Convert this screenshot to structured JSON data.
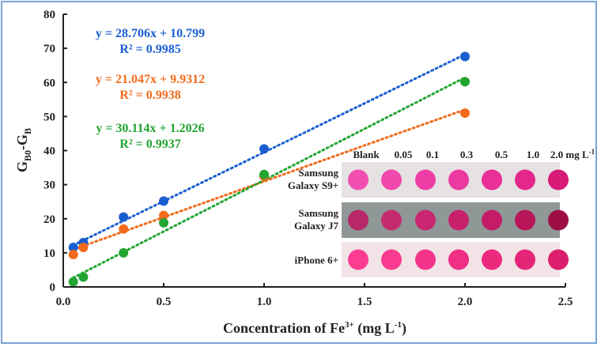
{
  "chart_data": {
    "type": "scatter",
    "title": "",
    "xlabel": "Concentration of Fe3+ (mg L-1)",
    "xlabel_parts": {
      "base": "Concentration of Fe",
      "sup": "3+",
      "mid": " (mg L",
      "sup2": "-1",
      "end": ")"
    },
    "ylabel_parts": {
      "g1": "G",
      "sub1": "B0",
      "mid": "-G",
      "sub2": "B"
    },
    "xlim": [
      0,
      2.5
    ],
    "ylim": [
      0,
      80
    ],
    "xticks": [
      "0.0",
      "0.5",
      "1.0",
      "1.5",
      "2.0",
      "2.5"
    ],
    "xtick_values": [
      0,
      0.5,
      1.0,
      1.5,
      2.0,
      2.5
    ],
    "yticks": [
      "0",
      "10",
      "20",
      "30",
      "40",
      "50",
      "60",
      "70",
      "80"
    ],
    "ytick_values": [
      0,
      10,
      20,
      30,
      40,
      50,
      60,
      70,
      80
    ],
    "grid": false,
    "series": [
      {
        "name": "Samsung Galaxy S9+",
        "color": "#1a5fd0",
        "x": [
          0.05,
          0.1,
          0.3,
          0.5,
          1.0,
          2.0
        ],
        "y": [
          11.6,
          13.0,
          20.5,
          25.2,
          40.5,
          67.6
        ],
        "trendline": {
          "slope": 28.706,
          "intercept": 10.799
        },
        "equation": "y = 28.706x + 10.799",
        "r2": "R² = 0.9985"
      },
      {
        "name": "iPhone 6+",
        "color": "#f26b1d",
        "x": [
          0.05,
          0.1,
          0.3,
          0.5,
          1.0,
          2.0
        ],
        "y": [
          9.5,
          11.6,
          17.0,
          21.0,
          32.5,
          51.0
        ],
        "trendline": {
          "slope": 21.047,
          "intercept": 9.9312
        },
        "equation": "y = 21.047x + 9.9312",
        "r2": "R² = 0.9938"
      },
      {
        "name": "Samsung Galaxy J7",
        "color": "#22a531",
        "x": [
          0.05,
          0.1,
          0.3,
          0.5,
          1.0,
          2.0
        ],
        "y": [
          1.5,
          2.9,
          10.0,
          18.8,
          33.0,
          60.2
        ],
        "trendline": {
          "slope": 30.114,
          "intercept": 1.2026
        },
        "equation": "y = 30.114x + 1.2026",
        "r2": "R² = 0.9937"
      }
    ],
    "inset": {
      "column_labels": [
        "Blank",
        "0.05",
        "0.1",
        "0.3",
        "0.5",
        "1.0",
        "2.0 mg L-1"
      ],
      "rows": [
        {
          "label_line1": "Samsung",
          "label_line2": "Galaxy S9+",
          "background": "#e6e2e3",
          "spot_colors": [
            "#f04fb0",
            "#f048ad",
            "#ee3ea6",
            "#ec39a1",
            "#e93099",
            "#e4278d",
            "#d81b76"
          ]
        },
        {
          "label_line1": "Samsung",
          "label_line2": "Galaxy J7",
          "background": "#8f9896",
          "spot_colors": [
            "#b82767",
            "#c52a6f",
            "#c92570",
            "#c8216c",
            "#c41c66",
            "#b81558",
            "#9e0e45"
          ]
        },
        {
          "label_line1": "iPhone 6+",
          "label_line2": "",
          "background": "#f2e4e6",
          "spot_colors": [
            "#fb3d92",
            "#f83a90",
            "#f3348a",
            "#f02f85",
            "#eb2a7e",
            "#e52678",
            "#dc1f6d"
          ]
        }
      ]
    }
  }
}
